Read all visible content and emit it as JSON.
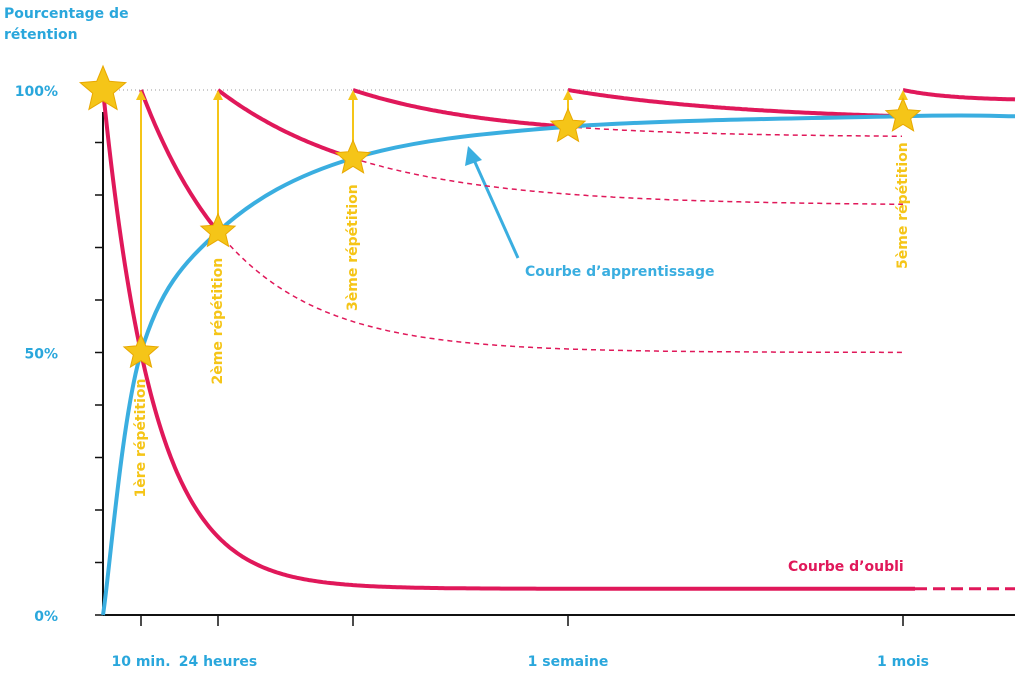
{
  "chart_data": {
    "type": "retention",
    "y_label": [
      "Pourcentage de",
      "rétention"
    ],
    "ylim": [
      0,
      100
    ],
    "yticks": [
      {
        "value": 0,
        "label": "0%"
      },
      {
        "value": 50,
        "label": "50%"
      },
      {
        "value": 100,
        "label": "100%"
      }
    ],
    "yminor_ticks": [
      10,
      20,
      30,
      40,
      60,
      70,
      80,
      90
    ],
    "categories": [
      "10 min.",
      "24 heures",
      null,
      "1 semaine",
      "1 mois"
    ],
    "repetition_labels": [
      "1ère répétition",
      "2ème répétition",
      "3ème répétition",
      null,
      "5ème répétition"
    ],
    "learning_curve": {
      "name": "Courbe d’apprentissage",
      "color": "#3aaee0",
      "start": 0,
      "values": [
        50,
        73,
        87,
        93,
        95
      ]
    },
    "forgetting_curve": {
      "name": "Courbe d’oubli",
      "color": "#e0185a",
      "peaks": [
        100,
        100,
        100,
        100,
        100,
        100
      ],
      "asymptotes": [
        5,
        50,
        78,
        91,
        null,
        98
      ]
    },
    "star_color": "#f5c518",
    "reference_line": 100
  }
}
